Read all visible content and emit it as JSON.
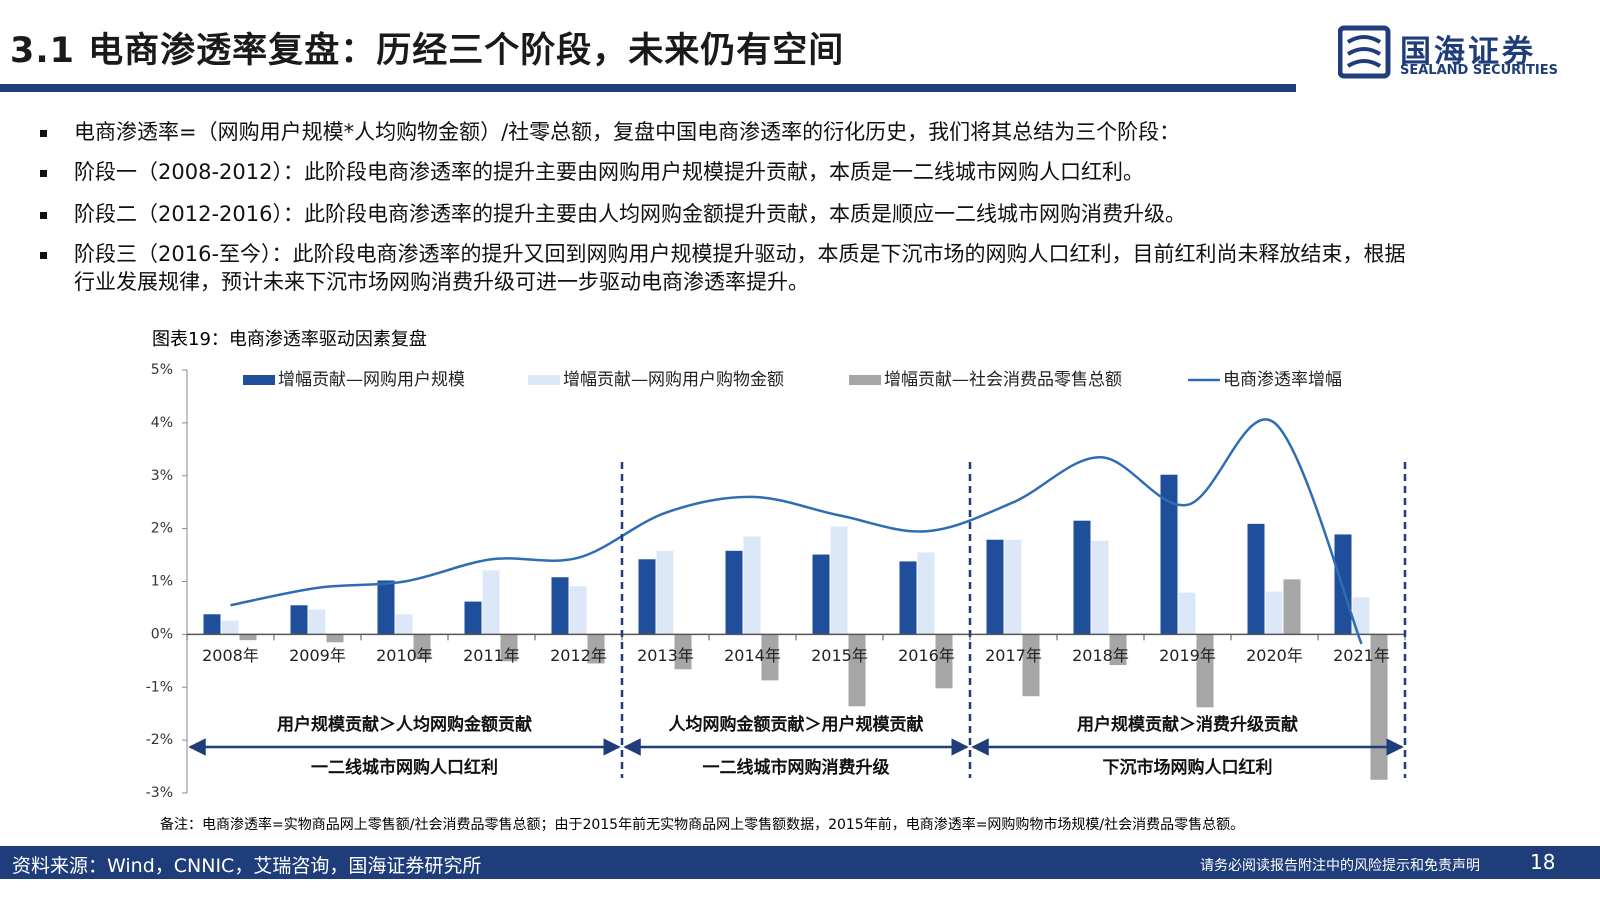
{
  "header": {
    "title": "3.1 电商渗透率复盘：历经三个阶段，未来仍有空间",
    "logo": "国海证券",
    "logo_en": "SEALAND SECURITIES"
  },
  "bullets": [
    "电商渗透率=（网购用户规模*人均购物金额）/社零总额，复盘中国电商渗透率的衍化历史，我们将其总结为三个阶段：",
    "阶段一（2008-2012）：此阶段电商渗透率的提升主要由网购用户规模提升贡献，本质是一二线城市网购人口红利。",
    "阶段二（2012-2016）：此阶段电商渗透率的提升主要由人均网购金额提升贡献，本质是顺应一二线城市网购消费升级。",
    "阶段三（2016-至今）：此阶段电商渗透率的提升又回到网购用户规模提升驱动，本质是下沉市场的网购人口红利，目前红利尚未释放结束，根据行业发展规律，预计未来下沉市场网购消费升级可进一步驱动电商渗透率提升。"
  ],
  "chart_data": {
    "type": "bar",
    "title": "图表19：电商渗透率驱动因素复盘",
    "categories": [
      "2008年",
      "2009年",
      "2010年",
      "2011年",
      "2012年",
      "2013年",
      "2014年",
      "2015年",
      "2016年",
      "2017年",
      "2018年",
      "2019年",
      "2020年",
      "2021年"
    ],
    "series": [
      {
        "name": "增幅贡献—网购用户规模",
        "type": "bar",
        "color": "#1f4e9a",
        "values": [
          0.38,
          0.55,
          1.02,
          0.62,
          1.08,
          1.42,
          1.58,
          1.51,
          1.38,
          1.79,
          2.15,
          3.02,
          2.09,
          1.89
        ]
      },
      {
        "name": "增幅贡献—网购用户购物金额",
        "type": "bar",
        "color": "#dce8f7",
        "values": [
          0.26,
          0.47,
          0.38,
          1.21,
          0.91,
          1.58,
          1.85,
          2.04,
          1.55,
          1.79,
          1.77,
          0.79,
          0.81,
          0.7
        ]
      },
      {
        "name": "增幅贡献—社会消费品零售总额",
        "type": "bar",
        "color": "#a6a6a6",
        "values": [
          -0.11,
          -0.15,
          -0.47,
          -0.51,
          -0.55,
          -0.66,
          -0.87,
          -1.36,
          -1.02,
          -1.17,
          -0.58,
          -1.38,
          1.04,
          -2.75
        ]
      },
      {
        "name": "电商渗透率增幅",
        "type": "line",
        "color": "#2e6db4",
        "values": [
          0.55,
          0.88,
          1.0,
          1.42,
          1.45,
          2.3,
          2.6,
          2.25,
          1.95,
          2.5,
          3.35,
          2.45,
          4.0,
          -0.18
        ]
      }
    ],
    "ylim": [
      -3,
      5
    ],
    "yticks": [
      {
        "value": -3,
        "label": "-3%"
      },
      {
        "value": -2,
        "label": "-2%"
      },
      {
        "value": -1,
        "label": "-1%"
      },
      {
        "value": 0,
        "label": "0%"
      },
      {
        "value": 1,
        "label": "1%"
      },
      {
        "value": 2,
        "label": "2%"
      },
      {
        "value": 3,
        "label": "3%"
      },
      {
        "value": 4,
        "label": "4%"
      },
      {
        "value": 5,
        "label": "5%"
      }
    ],
    "grid": false,
    "legend": "top",
    "phases": [
      {
        "top": "用户规模贡献＞人均网购金额贡献",
        "bottom": "一二线城市网购人口红利"
      },
      {
        "top": "人均网购金额贡献＞用户规模贡献",
        "bottom": "一二线城市网购消费升级"
      },
      {
        "top": "用户规模贡献＞消费升级贡献",
        "bottom": "下沉市场网购人口红利"
      }
    ],
    "note": "备注：电商渗透率=实物商品网上零售额/社会消费品零售总额；由于2015年前无实物商品网上零售额数据，2015年前，电商渗透率=网购购物市场规模/社会消费品零售总额。"
  },
  "footer": {
    "source": "资料来源：Wind，CNNIC，艾瑞咨询，国海证券研究所",
    "disclaimer": "请务必阅读报告附注中的风险提示和免责声明",
    "page": "18"
  }
}
